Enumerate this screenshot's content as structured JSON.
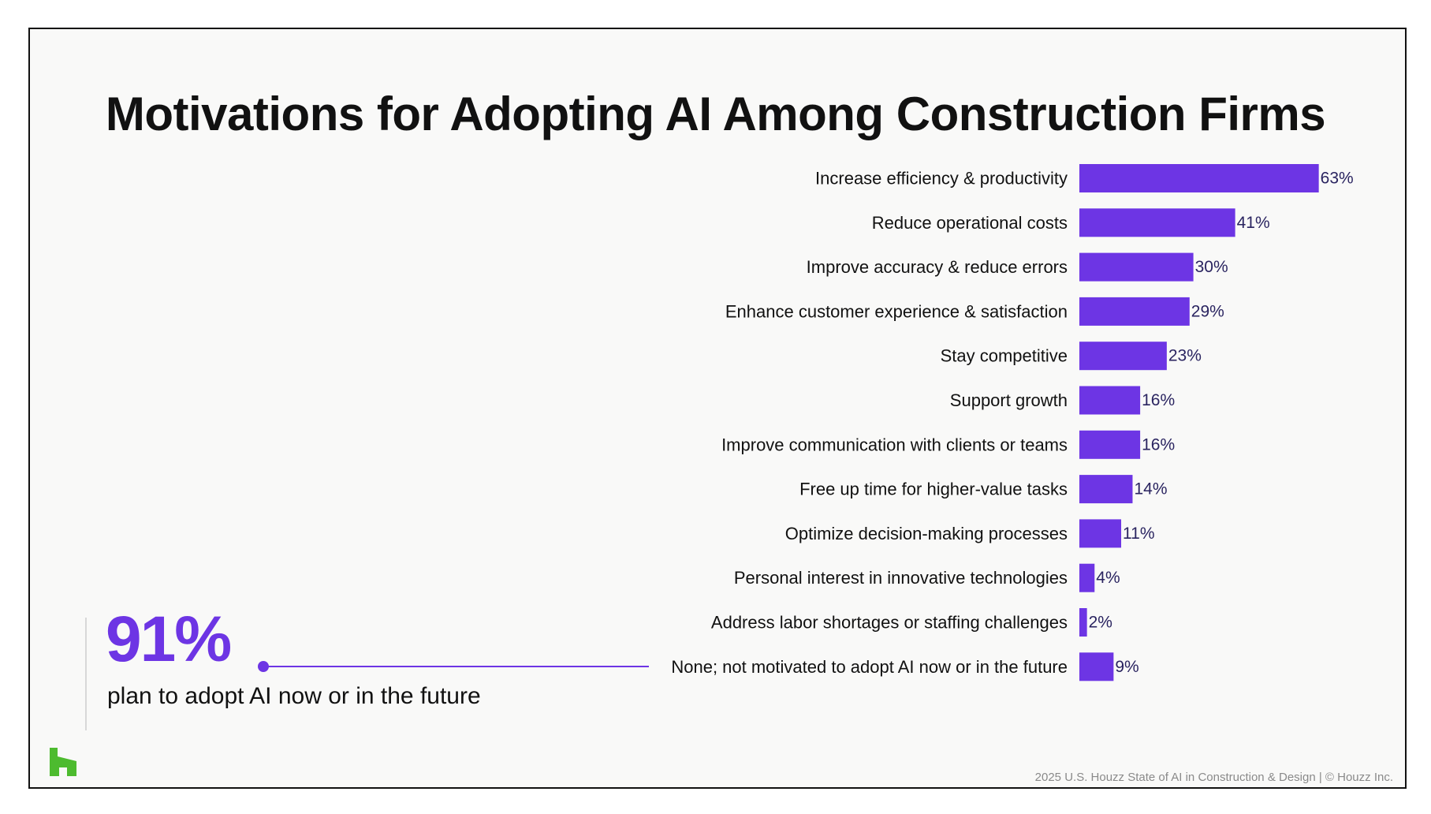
{
  "colors": {
    "accent": "#6d35e4",
    "logo": "#4dbb2f",
    "text": "#111111",
    "footer": "#8a8a8a"
  },
  "callout": {
    "value": "91%",
    "text": "plan to adopt AI now or in the future"
  },
  "logo": {
    "icon": "houzz-logo-icon"
  },
  "footer": {
    "text": "2025 U.S. Houzz State of AI in Construction & Design | © Houzz Inc."
  },
  "chart_data": {
    "type": "bar",
    "orientation": "horizontal",
    "title": "Motivations for Adopting AI Among Construction Firms",
    "categories": [
      "Increase efficiency & productivity",
      "Reduce operational costs",
      "Improve accuracy & reduce errors",
      "Enhance customer experience & satisfaction",
      "Stay competitive",
      "Support growth",
      "Improve communication with clients or teams",
      "Free up time for higher-value tasks",
      "Optimize decision-making processes",
      "Personal interest in innovative technologies",
      "Address labor shortages or staffing challenges",
      "None; not motivated to adopt AI now or in the future"
    ],
    "values": [
      63,
      41,
      30,
      29,
      23,
      16,
      16,
      14,
      11,
      4,
      2,
      9
    ],
    "value_labels": [
      "63%",
      "41%",
      "30%",
      "29%",
      "23%",
      "16%",
      "16%",
      "14%",
      "11%",
      "4%",
      "2%",
      "9%"
    ],
    "unit": "%",
    "grid": false,
    "legend": "none"
  }
}
